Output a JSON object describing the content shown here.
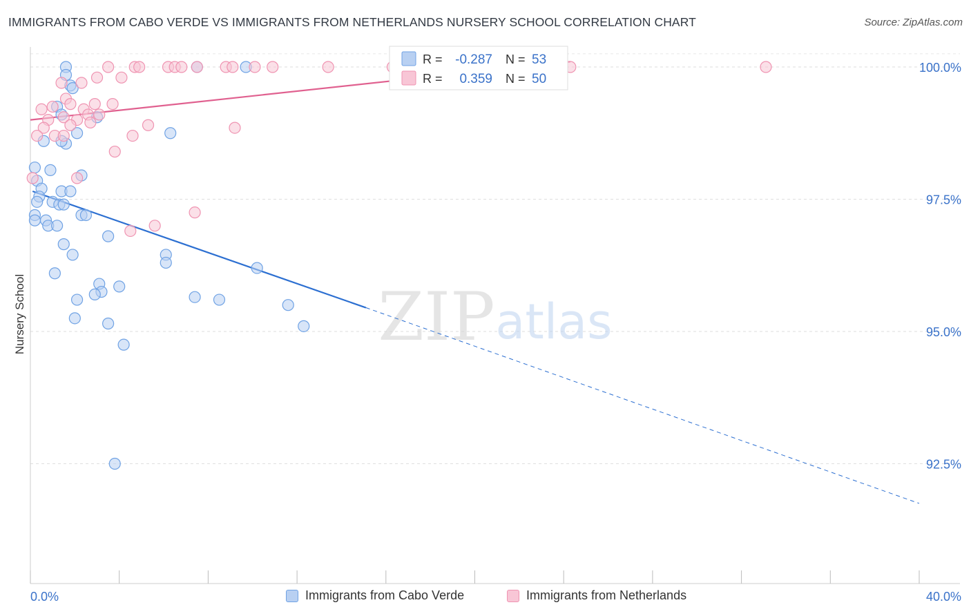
{
  "chart_data": {
    "type": "scatter",
    "title": "IMMIGRANTS FROM CABO VERDE VS IMMIGRANTS FROM NETHERLANDS NURSERY SCHOOL CORRELATION CHART",
    "source": "Source: ZipAtlas.com",
    "ylabel": "Nursery School",
    "xlabel": "",
    "x_tick_labels": [
      "0.0%",
      "40.0%"
    ],
    "y_tick_labels": [
      "100.0%",
      "97.5%",
      "95.0%",
      "92.5%"
    ],
    "y_ticks": [
      100.0,
      97.5,
      95.0,
      92.5
    ],
    "xlim": [
      0,
      40
    ],
    "ylim": [
      90.5,
      100.5
    ],
    "watermark": {
      "zip": "ZIP",
      "atlas": "atlas"
    },
    "legend_box": {
      "r_label": "R =",
      "n_label": "N =",
      "series": [
        {
          "r": "-0.287",
          "n": "53"
        },
        {
          "r": "0.359",
          "n": "50"
        }
      ]
    },
    "series": [
      {
        "name": "Immigrants from Cabo Verde",
        "color": "#6fa2e4",
        "fill": "#b8d0f2",
        "line_color": "#2c6fd1",
        "trend": {
          "x0": 0.1,
          "y0": 97.65,
          "x1": 15.1,
          "y1": 95.45,
          "x_dash_end": 40.0,
          "y_dash_end": 91.75
        },
        "points": [
          [
            1.6,
            100.0
          ],
          [
            1.6,
            99.85
          ],
          [
            1.8,
            99.65
          ],
          [
            1.2,
            99.25
          ],
          [
            1.4,
            99.1
          ],
          [
            3.0,
            99.05
          ],
          [
            2.1,
            98.75
          ],
          [
            6.3,
            98.75
          ],
          [
            1.6,
            98.55
          ],
          [
            1.4,
            98.6
          ],
          [
            0.2,
            98.1
          ],
          [
            0.9,
            98.05
          ],
          [
            2.3,
            97.95
          ],
          [
            0.3,
            97.85
          ],
          [
            0.5,
            97.7
          ],
          [
            1.4,
            97.65
          ],
          [
            1.8,
            97.65
          ],
          [
            0.4,
            97.55
          ],
          [
            0.3,
            97.45
          ],
          [
            1.0,
            97.45
          ],
          [
            1.3,
            97.4
          ],
          [
            1.5,
            97.4
          ],
          [
            0.2,
            97.2
          ],
          [
            0.2,
            97.1
          ],
          [
            2.3,
            97.2
          ],
          [
            2.5,
            97.2
          ],
          [
            0.7,
            97.1
          ],
          [
            0.8,
            97.0
          ],
          [
            1.2,
            97.0
          ],
          [
            3.5,
            96.8
          ],
          [
            1.5,
            96.65
          ],
          [
            1.9,
            96.45
          ],
          [
            6.1,
            96.45
          ],
          [
            6.1,
            96.3
          ],
          [
            10.2,
            96.2
          ],
          [
            1.1,
            96.1
          ],
          [
            3.1,
            95.9
          ],
          [
            4.0,
            95.85
          ],
          [
            3.2,
            95.75
          ],
          [
            2.9,
            95.7
          ],
          [
            7.4,
            95.65
          ],
          [
            2.1,
            95.6
          ],
          [
            8.5,
            95.6
          ],
          [
            11.6,
            95.5
          ],
          [
            2.0,
            95.25
          ],
          [
            3.5,
            95.15
          ],
          [
            12.3,
            95.1
          ],
          [
            4.2,
            94.75
          ],
          [
            3.8,
            92.5
          ],
          [
            9.7,
            100.0
          ],
          [
            7.5,
            100.0
          ],
          [
            1.9,
            99.6
          ],
          [
            0.6,
            98.6
          ]
        ]
      },
      {
        "name": "Immigrants from Netherlands",
        "color": "#ef93b1",
        "fill": "#f8c6d6",
        "line_color": "#e0608f",
        "trend": {
          "x0": 0.0,
          "y0": 99.0,
          "x1": 24.3,
          "y1": 100.1
        },
        "points": [
          [
            3.5,
            100.0
          ],
          [
            4.7,
            100.0
          ],
          [
            4.9,
            100.0
          ],
          [
            6.2,
            100.0
          ],
          [
            6.5,
            100.0
          ],
          [
            6.8,
            100.0
          ],
          [
            7.5,
            100.0
          ],
          [
            8.8,
            100.0
          ],
          [
            9.1,
            100.0
          ],
          [
            10.1,
            100.0
          ],
          [
            10.9,
            100.0
          ],
          [
            13.4,
            100.0
          ],
          [
            16.3,
            100.0
          ],
          [
            16.5,
            100.0
          ],
          [
            18.0,
            100.0
          ],
          [
            20.1,
            100.0
          ],
          [
            20.3,
            100.0
          ],
          [
            24.3,
            100.0
          ],
          [
            33.1,
            100.0
          ],
          [
            4.1,
            99.8
          ],
          [
            3.0,
            99.8
          ],
          [
            1.4,
            99.7
          ],
          [
            2.3,
            99.7
          ],
          [
            1.6,
            99.4
          ],
          [
            1.8,
            99.3
          ],
          [
            3.7,
            99.3
          ],
          [
            2.9,
            99.3
          ],
          [
            2.4,
            99.2
          ],
          [
            0.5,
            99.2
          ],
          [
            1.0,
            99.25
          ],
          [
            2.6,
            99.1
          ],
          [
            3.1,
            99.1
          ],
          [
            1.5,
            99.05
          ],
          [
            2.1,
            99.0
          ],
          [
            0.8,
            99.0
          ],
          [
            2.7,
            98.95
          ],
          [
            5.3,
            98.9
          ],
          [
            1.8,
            98.9
          ],
          [
            9.2,
            98.85
          ],
          [
            0.6,
            98.85
          ],
          [
            1.1,
            98.7
          ],
          [
            4.6,
            98.7
          ],
          [
            1.5,
            98.7
          ],
          [
            0.3,
            98.7
          ],
          [
            3.8,
            98.4
          ],
          [
            0.1,
            97.9
          ],
          [
            2.1,
            97.9
          ],
          [
            7.4,
            97.25
          ],
          [
            5.6,
            97.0
          ],
          [
            4.5,
            96.9
          ]
        ]
      }
    ]
  }
}
